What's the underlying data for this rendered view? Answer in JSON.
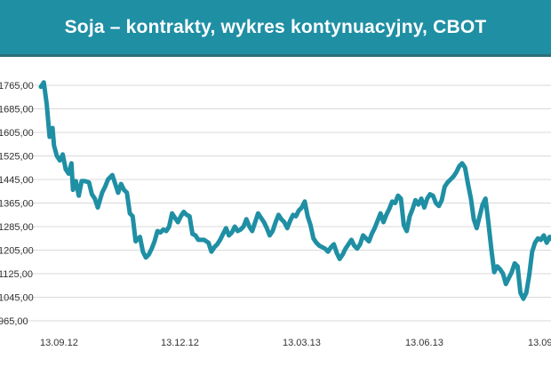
{
  "chart_data": {
    "type": "line",
    "title": "Soja – kontrakty, wykres kontynuacyjny, CBOT",
    "xlabel": "",
    "ylabel": "",
    "y_tick_labels": [
      "1765,00",
      "1685,00",
      "1605,00",
      "1525,00",
      "1445,00",
      "1365,00",
      "1285,00",
      "1205,00",
      "1125,00",
      "1045,00",
      "965,00"
    ],
    "x_tick_labels": [
      "13.09.12",
      "13.12.12",
      "13.03.13",
      "13.06.13",
      "13.09"
    ],
    "ylim": [
      965,
      1765
    ],
    "grid": true,
    "series_color": "#1f8fa4",
    "series": [
      {
        "values": [
          [
            0,
            1760
          ],
          [
            2,
            1775
          ],
          [
            4,
            1700
          ],
          [
            6,
            1590
          ],
          [
            8,
            1620
          ],
          [
            9,
            1560
          ],
          [
            11,
            1525
          ],
          [
            13,
            1510
          ],
          [
            15,
            1530
          ],
          [
            17,
            1480
          ],
          [
            19,
            1465
          ],
          [
            21,
            1500
          ],
          [
            22,
            1410
          ],
          [
            24,
            1440
          ],
          [
            26,
            1390
          ],
          [
            28,
            1440
          ],
          [
            30,
            1440
          ],
          [
            33,
            1435
          ],
          [
            35,
            1395
          ],
          [
            37,
            1380
          ],
          [
            39,
            1350
          ],
          [
            42,
            1400
          ],
          [
            44,
            1420
          ],
          [
            46,
            1445
          ],
          [
            49,
            1460
          ],
          [
            51,
            1430
          ],
          [
            53,
            1400
          ],
          [
            55,
            1430
          ],
          [
            57,
            1410
          ],
          [
            59,
            1400
          ],
          [
            61,
            1330
          ],
          [
            63,
            1320
          ],
          [
            65,
            1235
          ],
          [
            68,
            1250
          ],
          [
            70,
            1200
          ],
          [
            72,
            1180
          ],
          [
            74,
            1190
          ],
          [
            76,
            1210
          ],
          [
            78,
            1235
          ],
          [
            80,
            1270
          ],
          [
            82,
            1265
          ],
          [
            84,
            1275
          ],
          [
            86,
            1270
          ],
          [
            88,
            1285
          ],
          [
            90,
            1330
          ],
          [
            92,
            1315
          ],
          [
            94,
            1300
          ],
          [
            96,
            1320
          ],
          [
            98,
            1335
          ],
          [
            100,
            1325
          ],
          [
            102,
            1320
          ],
          [
            104,
            1260
          ],
          [
            106,
            1255
          ],
          [
            108,
            1240
          ],
          [
            110,
            1240
          ],
          [
            112,
            1240
          ],
          [
            115,
            1230
          ],
          [
            117,
            1200
          ],
          [
            119,
            1215
          ],
          [
            121,
            1225
          ],
          [
            123,
            1240
          ],
          [
            125,
            1260
          ],
          [
            127,
            1280
          ],
          [
            129,
            1255
          ],
          [
            131,
            1265
          ],
          [
            133,
            1285
          ],
          [
            135,
            1270
          ],
          [
            137,
            1275
          ],
          [
            139,
            1285
          ],
          [
            141,
            1310
          ],
          [
            143,
            1285
          ],
          [
            145,
            1270
          ],
          [
            147,
            1300
          ],
          [
            149,
            1330
          ],
          [
            151,
            1315
          ],
          [
            153,
            1300
          ],
          [
            155,
            1280
          ],
          [
            157,
            1255
          ],
          [
            159,
            1270
          ],
          [
            161,
            1300
          ],
          [
            163,
            1325
          ],
          [
            165,
            1310
          ],
          [
            167,
            1300
          ],
          [
            169,
            1280
          ],
          [
            171,
            1305
          ],
          [
            173,
            1325
          ],
          [
            175,
            1320
          ],
          [
            177,
            1340
          ],
          [
            179,
            1350
          ],
          [
            181,
            1370
          ],
          [
            183,
            1320
          ],
          [
            185,
            1290
          ],
          [
            187,
            1245
          ],
          [
            189,
            1230
          ],
          [
            191,
            1220
          ],
          [
            193,
            1215
          ],
          [
            195,
            1210
          ],
          [
            197,
            1200
          ],
          [
            199,
            1215
          ],
          [
            201,
            1225
          ],
          [
            203,
            1195
          ],
          [
            205,
            1175
          ],
          [
            207,
            1190
          ],
          [
            209,
            1210
          ],
          [
            211,
            1225
          ],
          [
            213,
            1240
          ],
          [
            215,
            1220
          ],
          [
            217,
            1210
          ],
          [
            219,
            1225
          ],
          [
            221,
            1255
          ],
          [
            223,
            1245
          ],
          [
            225,
            1235
          ],
          [
            227,
            1260
          ],
          [
            229,
            1280
          ],
          [
            231,
            1305
          ],
          [
            233,
            1330
          ],
          [
            235,
            1300
          ],
          [
            237,
            1325
          ],
          [
            239,
            1345
          ],
          [
            241,
            1370
          ],
          [
            243,
            1365
          ],
          [
            245,
            1390
          ],
          [
            247,
            1380
          ],
          [
            249,
            1290
          ],
          [
            251,
            1270
          ],
          [
            253,
            1320
          ],
          [
            255,
            1345
          ],
          [
            257,
            1375
          ],
          [
            259,
            1360
          ],
          [
            261,
            1380
          ],
          [
            263,
            1350
          ],
          [
            265,
            1380
          ],
          [
            267,
            1395
          ],
          [
            269,
            1390
          ],
          [
            271,
            1365
          ],
          [
            273,
            1355
          ],
          [
            275,
            1375
          ],
          [
            277,
            1420
          ],
          [
            279,
            1435
          ],
          [
            281,
            1445
          ],
          [
            283,
            1455
          ],
          [
            285,
            1470
          ],
          [
            287,
            1490
          ],
          [
            289,
            1500
          ],
          [
            291,
            1485
          ],
          [
            293,
            1430
          ],
          [
            295,
            1380
          ],
          [
            297,
            1310
          ],
          [
            299,
            1280
          ],
          [
            301,
            1320
          ],
          [
            303,
            1360
          ],
          [
            305,
            1380
          ],
          [
            307,
            1300
          ],
          [
            309,
            1210
          ],
          [
            311,
            1130
          ],
          [
            313,
            1150
          ],
          [
            315,
            1140
          ],
          [
            317,
            1125
          ],
          [
            319,
            1090
          ],
          [
            321,
            1110
          ],
          [
            323,
            1130
          ],
          [
            325,
            1160
          ],
          [
            327,
            1150
          ],
          [
            329,
            1060
          ],
          [
            331,
            1040
          ],
          [
            333,
            1060
          ],
          [
            335,
            1120
          ],
          [
            337,
            1200
          ],
          [
            339,
            1230
          ],
          [
            341,
            1245
          ],
          [
            343,
            1240
          ],
          [
            345,
            1255
          ],
          [
            347,
            1230
          ],
          [
            349,
            1250
          ],
          [
            351,
            1240
          ],
          [
            353,
            1225
          ]
        ]
      }
    ]
  }
}
